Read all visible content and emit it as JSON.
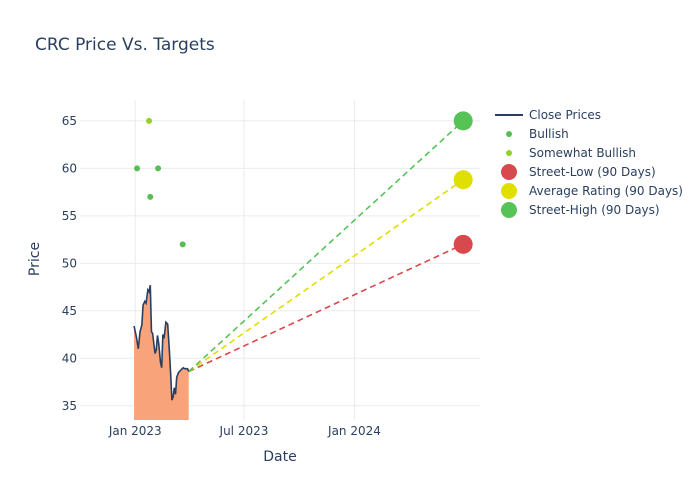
{
  "chart_data": {
    "type": "line",
    "title": "CRC Price Vs. Targets",
    "xlabel": "Date",
    "ylabel": "Price",
    "x_ticks": [
      "Jan 2023",
      "Jul 2023",
      "Jan 2024"
    ],
    "y_ticks": [
      35,
      40,
      45,
      50,
      55,
      60,
      65
    ],
    "ylim": [
      33.5,
      67.2
    ],
    "xlim": [
      "2022-10-01",
      "2024-07-28"
    ],
    "grid": true,
    "legend_position": "right",
    "series": [
      {
        "name": "Close Prices",
        "kind": "line",
        "color": "#2a3f5f",
        "fill_color": "#f9a37a",
        "x": [
          "2022-12-30",
          "2023-01-03",
          "2023-01-06",
          "2023-01-09",
          "2023-01-12",
          "2023-01-14",
          "2023-01-17",
          "2023-01-19",
          "2023-01-22",
          "2023-01-24",
          "2023-01-26",
          "2023-01-28",
          "2023-01-30",
          "2023-02-01",
          "2023-02-03",
          "2023-02-05",
          "2023-02-07",
          "2023-02-09",
          "2023-02-12",
          "2023-02-14",
          "2023-02-16",
          "2023-02-18",
          "2023-02-21",
          "2023-02-24",
          "2023-02-27",
          "2023-03-01",
          "2023-03-03",
          "2023-03-05",
          "2023-03-07",
          "2023-03-09",
          "2023-03-11",
          "2023-03-14",
          "2023-03-17",
          "2023-03-20",
          "2023-03-22",
          "2023-03-24",
          "2023-03-27",
          "2023-03-29",
          "2023-03-31"
        ],
        "y": [
          43.4,
          42.2,
          41.0,
          42.8,
          43.5,
          45.6,
          46.0,
          45.8,
          47.2,
          47.0,
          47.7,
          42.8,
          42.6,
          41.5,
          40.5,
          40.9,
          42.4,
          41.6,
          39.6,
          39.0,
          42.5,
          42.1,
          43.8,
          43.6,
          40.6,
          38.3,
          35.6,
          35.9,
          36.9,
          36.2,
          38.0,
          38.5,
          38.7,
          38.9,
          39.0,
          38.9,
          38.9,
          38.9,
          38.6
        ]
      },
      {
        "name": "Bullish",
        "kind": "markers",
        "color": "#56bf54",
        "x": [
          "2023-01-04",
          "2023-02-08",
          "2023-03-21",
          "2023-01-26"
        ],
        "y": [
          60,
          60,
          52,
          57
        ]
      },
      {
        "name": "Somewhat Bullish",
        "kind": "markers",
        "color": "#93d127",
        "x": [
          "2023-01-24"
        ],
        "y": [
          65
        ]
      },
      {
        "name": "Street-Low (90 Days)",
        "kind": "target",
        "color": "#d8494e",
        "x": [
          "2023-03-31",
          "2024-06-30"
        ],
        "y": [
          38.6,
          52
        ]
      },
      {
        "name": "Average Rating (90 Days)",
        "kind": "target",
        "color": "#dfdf00",
        "x": [
          "2023-03-31",
          "2024-06-30"
        ],
        "y": [
          38.6,
          58.8
        ]
      },
      {
        "name": "Street-High (90 Days)",
        "kind": "target",
        "color": "#56c356",
        "x": [
          "2023-03-31",
          "2024-06-30"
        ],
        "y": [
          38.6,
          65
        ]
      }
    ]
  }
}
